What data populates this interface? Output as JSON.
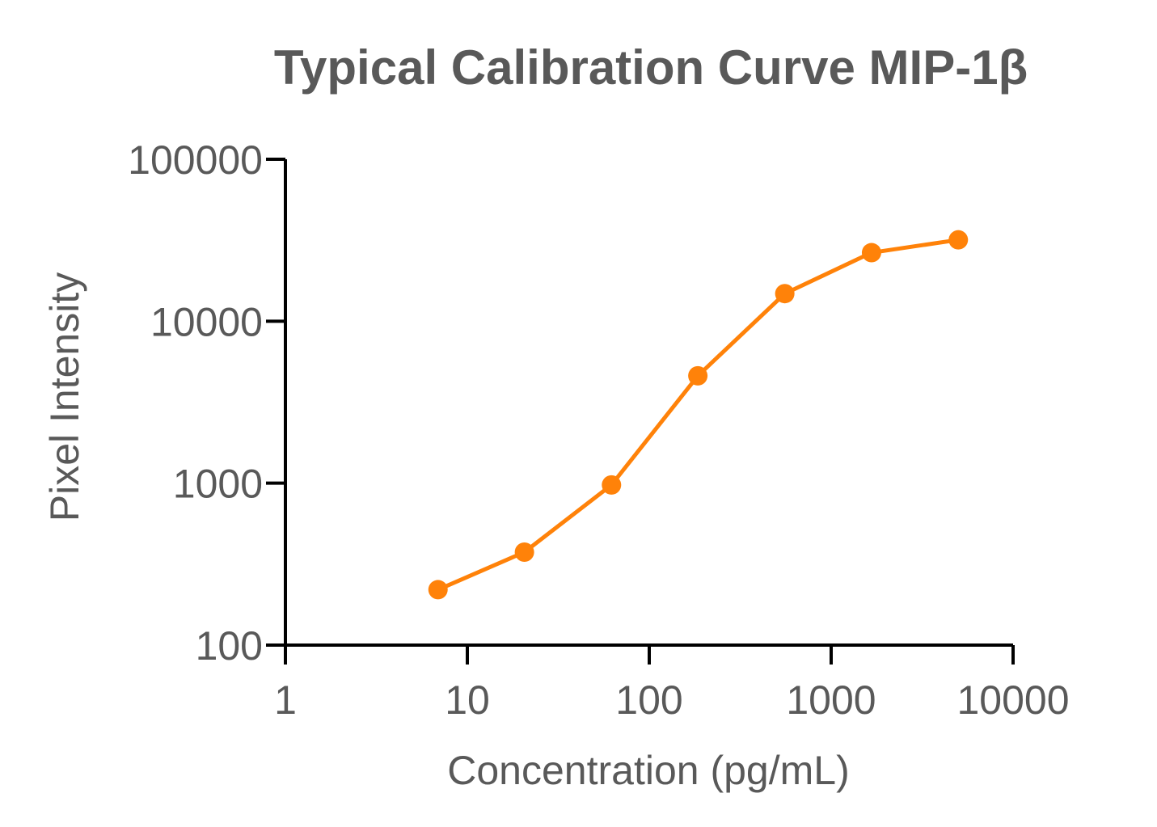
{
  "chart_data": {
    "type": "line",
    "title": "Typical Calibration Curve MIP-1β",
    "xlabel": "Concentration (pg/mL)",
    "ylabel": "Pixel Intensity",
    "xscale": "log",
    "yscale": "log",
    "xlim": [
      1,
      10000
    ],
    "ylim": [
      100,
      100000
    ],
    "x_ticks": [
      "1",
      "10",
      "100",
      "1000",
      "10000"
    ],
    "y_ticks": [
      "100",
      "1000",
      "10000",
      "100000"
    ],
    "grid": false,
    "series": [
      {
        "color": "#ff8209",
        "marker": "circle",
        "x": [
          6.9,
          20.6,
          62,
          185,
          556,
          1667,
          5000
        ],
        "y": [
          220,
          375,
          975,
          4600,
          14800,
          26500,
          31800
        ]
      }
    ]
  }
}
